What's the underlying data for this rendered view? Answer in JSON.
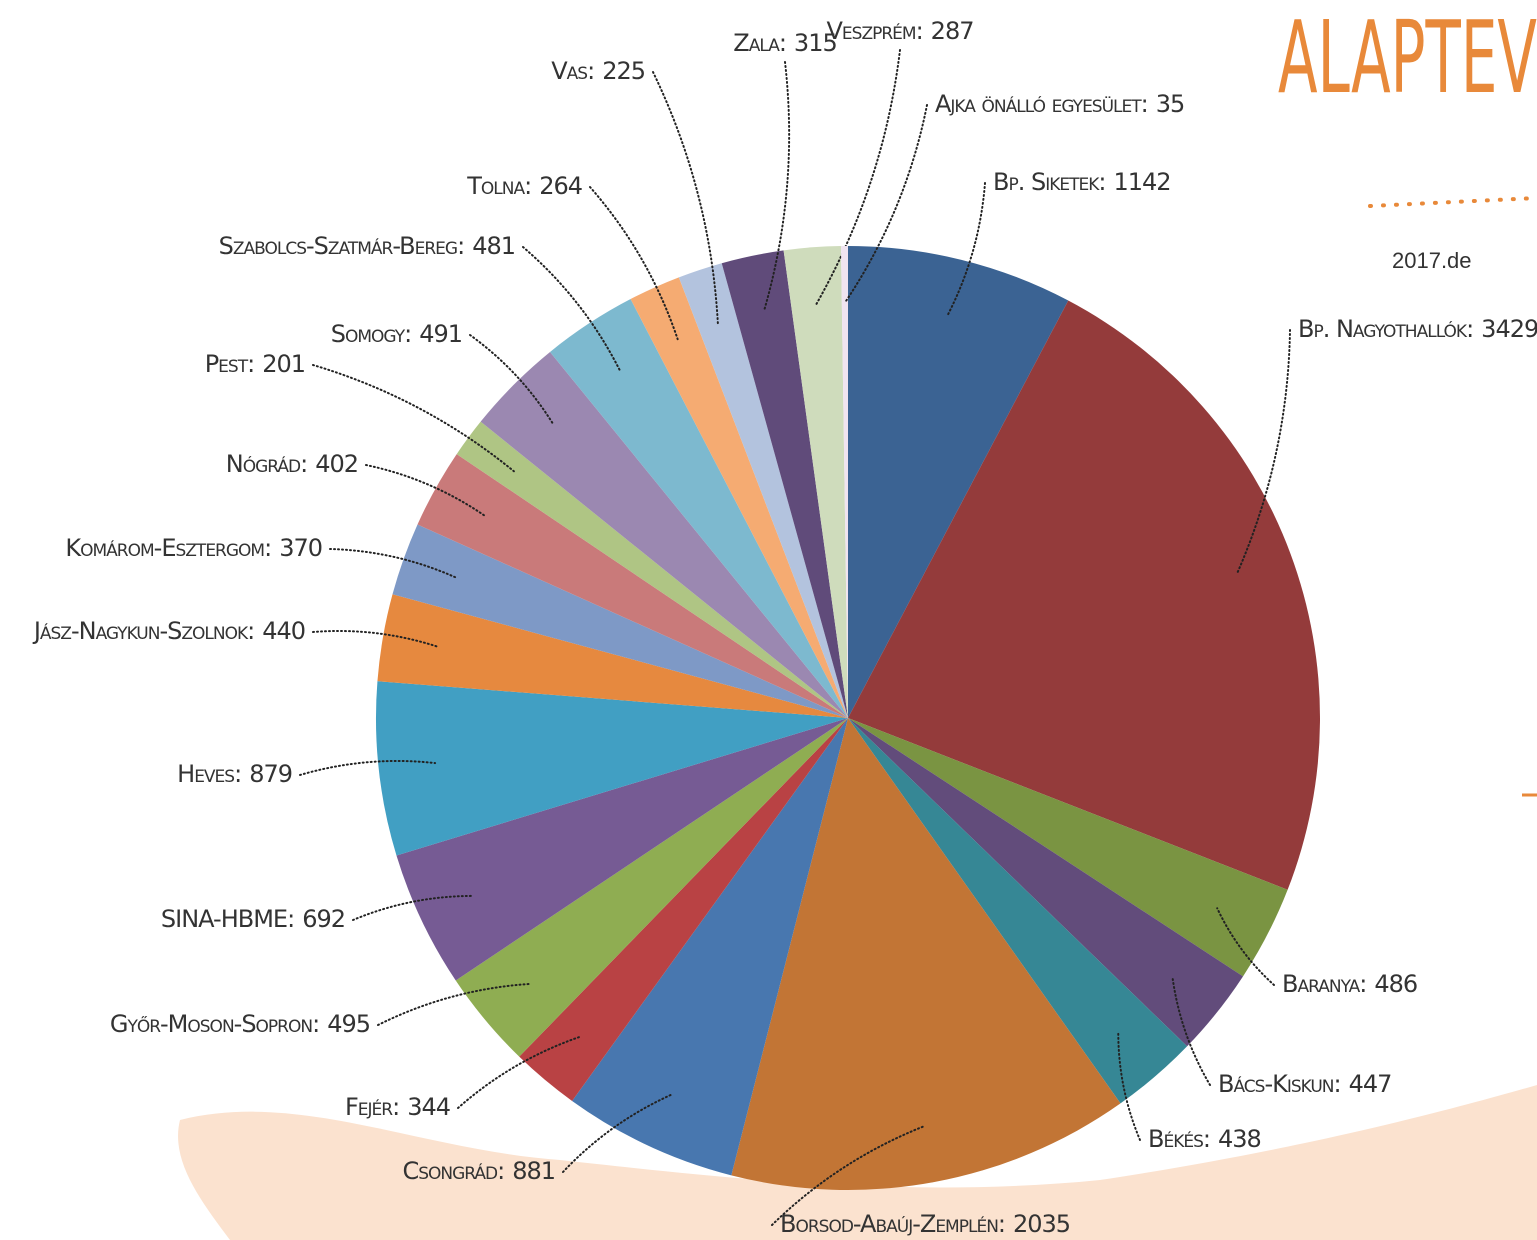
{
  "chart_data": {
    "type": "pie",
    "title": "ALAPTEV",
    "subtitle": "2017.de",
    "categories": [
      "Bp. Siketek:",
      "Bp. Nagyothallók:",
      "Baranya:",
      "Bács-Kiskun:",
      "Békés:",
      "Borsod-Abaúj-Zemplén:",
      "Csongrád:",
      "Fejér:",
      "Győr-Moson-Sopron:",
      "SINA-HBME:",
      "Heves:",
      "Jász-Nagykun-Szolnok:",
      "Komárom-Esztergom:",
      "Nógrád:",
      "Pest:",
      "Somogy:",
      "Szabolcs-Szatmár-Bereg:",
      "Tolna:",
      "Vas:",
      "Zala:",
      "Veszprém:",
      "Ajka önálló egyesület:"
    ],
    "values": [
      1142,
      3429,
      486,
      447,
      438,
      2035,
      881,
      344,
      495,
      692,
      879,
      440,
      370,
      402,
      201,
      491,
      481,
      264,
      225,
      315,
      287,
      35
    ],
    "colors": [
      "#3b6393",
      "#943b3b",
      "#7a9442",
      "#624c7b",
      "#368795",
      "#c27535",
      "#4877af",
      "#b94244",
      "#8fad52",
      "#765b94",
      "#419fc3",
      "#e6893f",
      "#7e99c6",
      "#c97a7a",
      "#afc584",
      "#9b88b1",
      "#7db9cf",
      "#f5ab72",
      "#b3c3de",
      "#604b7a",
      "#cfdcbc",
      "#f0e4f0"
    ]
  }
}
